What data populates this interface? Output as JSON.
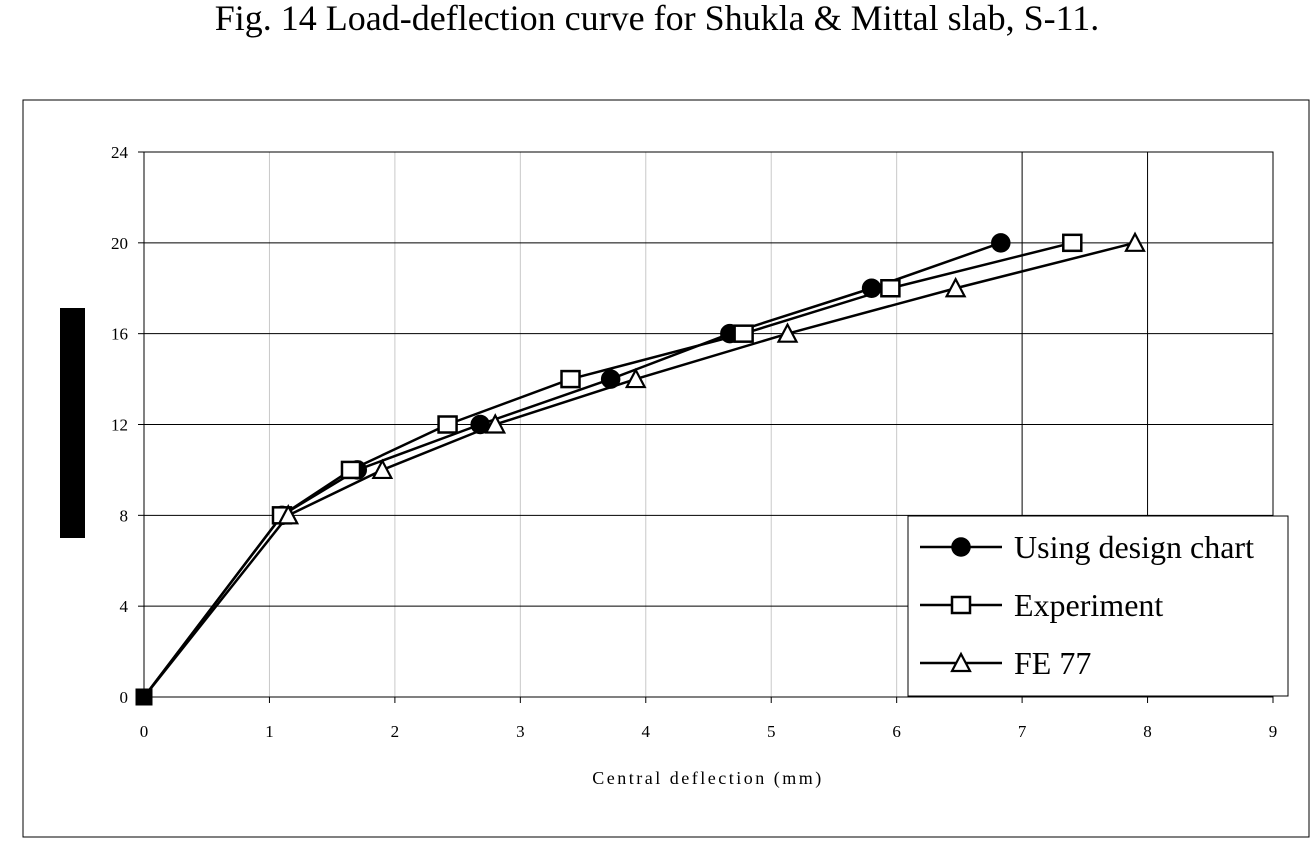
{
  "figure_caption": "Fig. 14 Load-deflection curve for Shukla & Mittal slab, S-11.",
  "chart_data": {
    "type": "line",
    "xlabel": "Central deflection (mm)",
    "ylabel": "",
    "xlim": [
      0,
      9
    ],
    "ylim": [
      0,
      24
    ],
    "x_ticks": [
      "0",
      "1",
      "2",
      "3",
      "4",
      "5",
      "6",
      "7",
      "8",
      "9"
    ],
    "y_ticks": [
      "0",
      "4",
      "8",
      "12",
      "16",
      "20",
      "24"
    ],
    "grid": true,
    "legend_position": "bottom-right",
    "series": [
      {
        "name": "Using design chart",
        "marker": "filled-circle",
        "points": [
          [
            0,
            0
          ],
          [
            1.1,
            8
          ],
          [
            1.7,
            10
          ],
          [
            2.68,
            12
          ],
          [
            3.72,
            14
          ],
          [
            4.67,
            16
          ],
          [
            5.8,
            18
          ],
          [
            6.83,
            20
          ]
        ]
      },
      {
        "name": "Experiment",
        "marker": "open-square",
        "points": [
          [
            0,
            0
          ],
          [
            1.1,
            8
          ],
          [
            1.65,
            10
          ],
          [
            2.42,
            12
          ],
          [
            3.4,
            14
          ],
          [
            4.78,
            16
          ],
          [
            5.95,
            18
          ],
          [
            7.4,
            20
          ]
        ]
      },
      {
        "name": "FE 77",
        "marker": "open-triangle",
        "points": [
          [
            0,
            0
          ],
          [
            1.15,
            8
          ],
          [
            1.9,
            10
          ],
          [
            2.8,
            12
          ],
          [
            3.92,
            14
          ],
          [
            5.13,
            16
          ],
          [
            6.47,
            18
          ],
          [
            7.9,
            20
          ]
        ]
      }
    ]
  }
}
